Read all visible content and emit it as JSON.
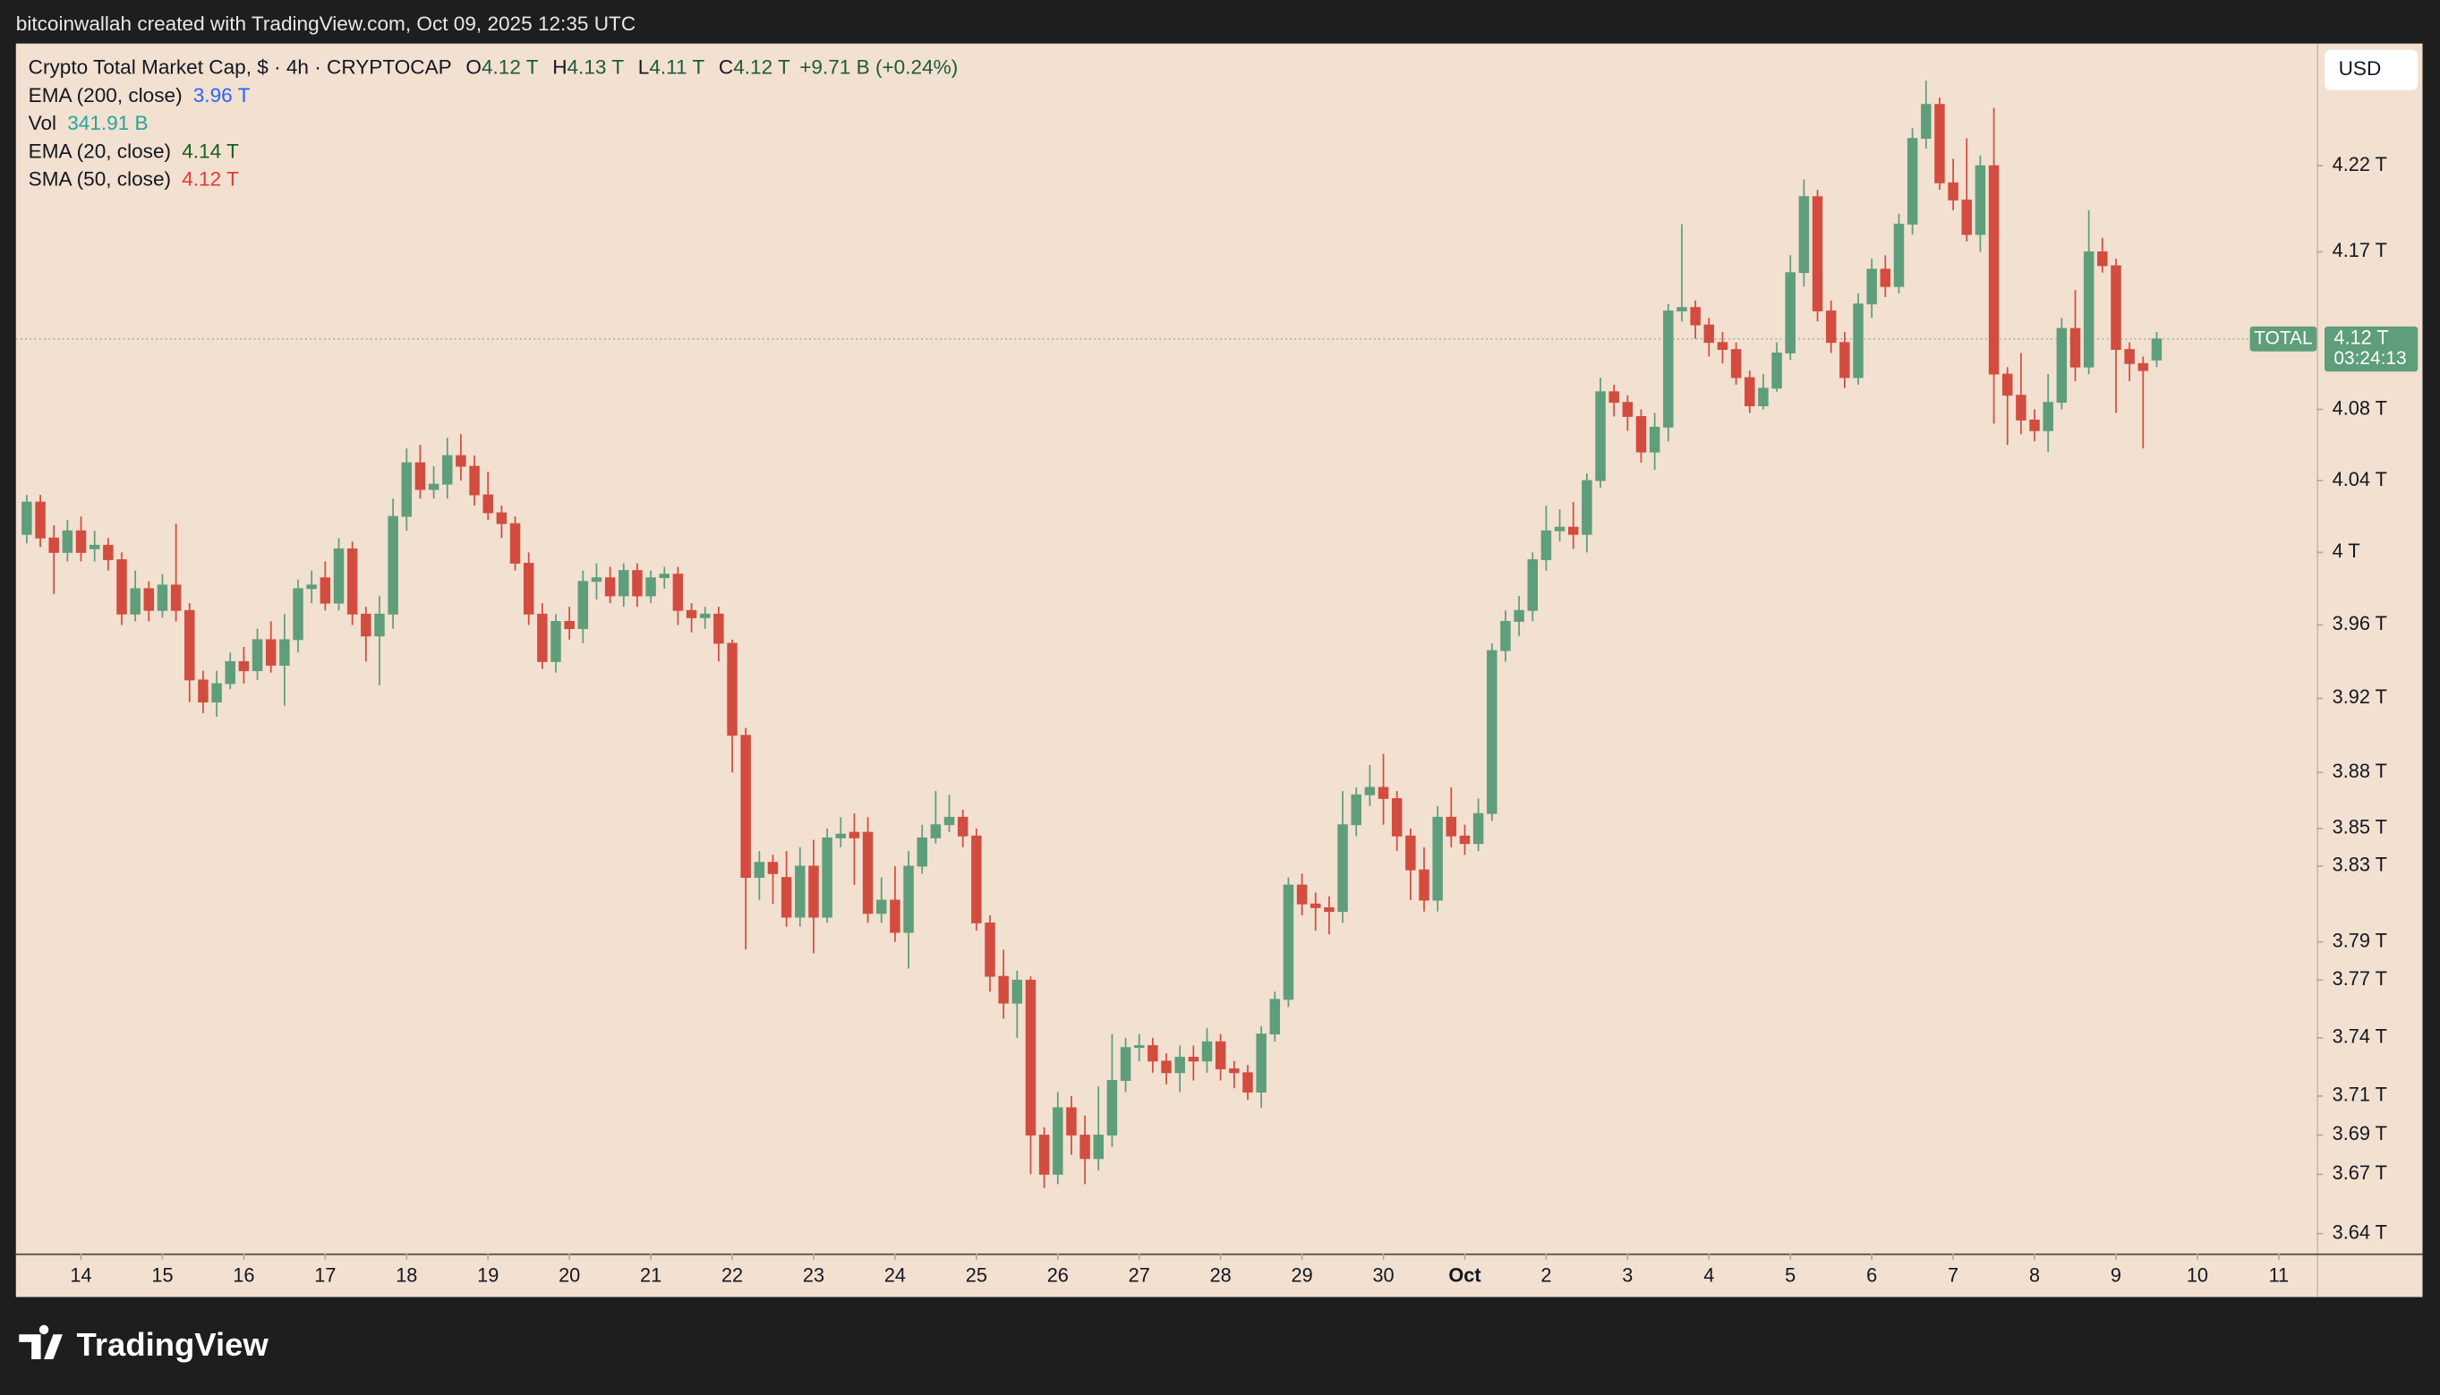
{
  "header": {
    "caption": "bitcoinwallah created with TradingView.com, Oct 09, 2025 12:35 UTC"
  },
  "footer": {
    "brand": "TradingView"
  },
  "chart_data": {
    "type": "candlestick",
    "title": "Crypto Total Market Cap, $ · 4h · CRYPTOCAP",
    "ohlc_legend": [
      {
        "key": "O",
        "value": "4.12 T"
      },
      {
        "key": "H",
        "value": "4.13 T"
      },
      {
        "key": "L",
        "value": "4.11 T"
      },
      {
        "key": "C",
        "value": "4.12 T"
      }
    ],
    "change": "+9.71 B (+0.24%)",
    "indicators": [
      {
        "name": "EMA (200, close)",
        "value": "3.96 T",
        "color": "#2962ff"
      },
      {
        "name": "Vol",
        "value": "341.91 B",
        "color": "#26a69a"
      },
      {
        "name": "EMA (20, close)",
        "value": "4.14 T",
        "color": "#1b5e20"
      },
      {
        "name": "SMA (50, close)",
        "value": "4.12 T",
        "color": "#e53935"
      }
    ],
    "currency": "USD",
    "last_price": {
      "symbol": "TOTAL",
      "value": 4.12,
      "label": "4.12 T",
      "countdown": "03:24:13"
    },
    "up_color": "#5e9e7b",
    "down_color": "#d34c40",
    "log_scale": true,
    "ylim": [
      3.63,
      4.292
    ],
    "yticks": [
      {
        "value": 4.22,
        "label": "4.22 T"
      },
      {
        "value": 4.17,
        "label": "4.17 T"
      },
      {
        "value": 4.08,
        "label": "4.08 T"
      },
      {
        "value": 4.04,
        "label": "4.04 T"
      },
      {
        "value": 4,
        "label": "4 T"
      },
      {
        "value": 3.96,
        "label": "3.96 T"
      },
      {
        "value": 3.92,
        "label": "3.92 T"
      },
      {
        "value": 3.88,
        "label": "3.88 T"
      },
      {
        "value": 3.85,
        "label": "3.85 T"
      },
      {
        "value": 3.83,
        "label": "3.83 T"
      },
      {
        "value": 3.79,
        "label": "3.79 T"
      },
      {
        "value": 3.77,
        "label": "3.77 T"
      },
      {
        "value": 3.74,
        "label": "3.74 T"
      },
      {
        "value": 3.71,
        "label": "3.71 T"
      },
      {
        "value": 3.69,
        "label": "3.69 T"
      },
      {
        "value": 3.67,
        "label": "3.67 T"
      },
      {
        "value": 3.64,
        "label": "3.64 T"
      }
    ],
    "xlim": [
      -0.8,
      168.8
    ],
    "xticks": [
      {
        "value": 4,
        "label": "14"
      },
      {
        "value": 10,
        "label": "15"
      },
      {
        "value": 16,
        "label": "16"
      },
      {
        "value": 22,
        "label": "17"
      },
      {
        "value": 28,
        "label": "18"
      },
      {
        "value": 34,
        "label": "19"
      },
      {
        "value": 40,
        "label": "20"
      },
      {
        "value": 46,
        "label": "21"
      },
      {
        "value": 52,
        "label": "22"
      },
      {
        "value": 58,
        "label": "23"
      },
      {
        "value": 64,
        "label": "24"
      },
      {
        "value": 70,
        "label": "25"
      },
      {
        "value": 76,
        "label": "26"
      },
      {
        "value": 82,
        "label": "27"
      },
      {
        "value": 88,
        "label": "28"
      },
      {
        "value": 94,
        "label": "29"
      },
      {
        "value": 100,
        "label": "30"
      },
      {
        "value": 106,
        "label": "Oct"
      },
      {
        "value": 112,
        "label": "2"
      },
      {
        "value": 118,
        "label": "3"
      },
      {
        "value": 124,
        "label": "4"
      },
      {
        "value": 130,
        "label": "5"
      },
      {
        "value": 136,
        "label": "6"
      },
      {
        "value": 142,
        "label": "7"
      },
      {
        "value": 148,
        "label": "8"
      },
      {
        "value": 154,
        "label": "9"
      },
      {
        "value": 160,
        "label": "10"
      },
      {
        "value": 166,
        "label": "11"
      }
    ],
    "open": [
      4.01,
      4.028,
      4.008,
      4.0,
      4.012,
      4.002,
      4.004,
      3.996,
      3.966,
      3.98,
      3.968,
      3.982,
      3.968,
      3.93,
      3.918,
      3.928,
      3.94,
      3.935,
      3.952,
      3.938,
      3.952,
      3.98,
      3.986,
      3.972,
      4.002,
      3.966,
      3.954,
      3.966,
      4.02,
      4.05,
      4.035,
      4.038,
      4.054,
      4.048,
      4.032,
      4.022,
      4.016,
      3.994,
      3.966,
      3.94,
      3.962,
      3.958,
      3.984,
      3.986,
      3.976,
      3.99,
      3.976,
      3.986,
      3.988,
      3.968,
      3.964,
      3.966,
      3.95,
      3.9,
      3.824,
      3.832,
      3.824,
      3.803,
      3.83,
      3.803,
      3.845,
      3.848,
      3.848,
      3.805,
      3.812,
      3.795,
      3.83,
      3.845,
      3.852,
      3.856,
      3.846,
      3.8,
      3.772,
      3.758,
      3.77,
      3.69,
      3.67,
      3.704,
      3.69,
      3.678,
      3.69,
      3.718,
      3.735,
      3.736,
      3.728,
      3.722,
      3.73,
      3.728,
      3.738,
      3.724,
      3.722,
      3.712,
      3.742,
      3.76,
      3.82,
      3.81,
      3.808,
      3.806,
      3.852,
      3.868,
      3.872,
      3.866,
      3.846,
      3.828,
      3.812,
      3.856,
      3.846,
      3.842,
      3.858,
      3.946,
      3.962,
      3.968,
      3.996,
      4.012,
      4.014,
      4.01,
      4.04,
      4.09,
      4.084,
      4.076,
      4.056,
      4.07,
      4.136,
      4.138,
      4.128,
      4.118,
      4.114,
      4.098,
      4.082,
      4.092,
      4.112,
      4.158,
      4.202,
      4.136,
      4.118,
      4.098,
      4.14,
      4.16,
      4.15,
      4.186,
      4.236,
      4.256,
      4.21,
      4.2,
      4.18,
      4.22,
      4.1,
      4.088,
      4.074,
      4.068,
      4.084,
      4.126,
      4.104,
      4.17,
      4.162,
      4.114,
      4.106,
      4.108
    ],
    "high": [
      4.032,
      4.032,
      4.015,
      4.018,
      4.02,
      4.012,
      4.008,
      4.0,
      3.99,
      3.984,
      3.988,
      4.016,
      3.972,
      3.935,
      3.935,
      3.945,
      3.948,
      3.958,
      3.962,
      3.966,
      3.985,
      3.99,
      3.995,
      4.008,
      4.006,
      3.97,
      3.976,
      4.03,
      4.058,
      4.06,
      4.048,
      4.064,
      4.066,
      4.054,
      4.045,
      4.026,
      4.02,
      4.0,
      3.972,
      3.966,
      3.97,
      3.99,
      3.994,
      3.992,
      3.994,
      3.994,
      3.99,
      3.992,
      3.992,
      3.972,
      3.97,
      3.97,
      3.952,
      3.904,
      3.838,
      3.836,
      3.838,
      3.84,
      3.844,
      3.85,
      3.856,
      3.858,
      3.856,
      3.824,
      3.83,
      3.838,
      3.852,
      3.87,
      3.868,
      3.86,
      3.85,
      3.804,
      3.786,
      3.775,
      3.772,
      3.694,
      3.712,
      3.71,
      3.7,
      3.715,
      3.742,
      3.74,
      3.742,
      3.74,
      3.732,
      3.736,
      3.736,
      3.745,
      3.742,
      3.728,
      3.726,
      3.746,
      3.764,
      3.824,
      3.826,
      3.816,
      3.814,
      3.87,
      3.872,
      3.884,
      3.89,
      3.87,
      3.85,
      3.84,
      3.862,
      3.872,
      3.852,
      3.866,
      3.95,
      3.968,
      3.976,
      4.0,
      4.026,
      4.024,
      4.028,
      4.044,
      4.098,
      4.094,
      4.088,
      4.08,
      4.078,
      4.14,
      4.186,
      4.142,
      4.132,
      4.124,
      4.118,
      4.102,
      4.1,
      4.118,
      4.168,
      4.212,
      4.206,
      4.142,
      4.124,
      4.146,
      4.166,
      4.168,
      4.192,
      4.242,
      4.27,
      4.26,
      4.224,
      4.236,
      4.226,
      4.254,
      4.104,
      4.112,
      4.08,
      4.1,
      4.132,
      4.148,
      4.194,
      4.178,
      4.166,
      4.118,
      4.11,
      4.124
    ],
    "low": [
      4.005,
      4.003,
      3.977,
      3.995,
      3.995,
      3.995,
      3.99,
      3.96,
      3.962,
      3.962,
      3.964,
      3.962,
      3.918,
      3.912,
      3.91,
      3.925,
      3.928,
      3.93,
      3.934,
      3.916,
      3.945,
      3.972,
      3.968,
      3.968,
      3.96,
      3.94,
      3.927,
      3.958,
      4.012,
      4.03,
      4.03,
      4.03,
      4.04,
      4.026,
      4.018,
      4.008,
      3.99,
      3.96,
      3.936,
      3.934,
      3.952,
      3.95,
      3.974,
      3.972,
      3.97,
      3.97,
      3.972,
      3.98,
      3.96,
      3.956,
      3.958,
      3.94,
      3.88,
      3.786,
      3.812,
      3.81,
      3.798,
      3.798,
      3.784,
      3.8,
      3.84,
      3.82,
      3.8,
      3.8,
      3.79,
      3.776,
      3.826,
      3.842,
      3.848,
      3.84,
      3.796,
      3.764,
      3.75,
      3.74,
      3.67,
      3.663,
      3.665,
      3.68,
      3.665,
      3.672,
      3.684,
      3.712,
      3.728,
      3.722,
      3.716,
      3.712,
      3.718,
      3.722,
      3.718,
      3.714,
      3.708,
      3.704,
      3.738,
      3.756,
      3.804,
      3.796,
      3.794,
      3.8,
      3.846,
      3.862,
      3.852,
      3.838,
      3.812,
      3.806,
      3.806,
      3.84,
      3.836,
      3.838,
      3.854,
      3.94,
      3.954,
      3.962,
      3.99,
      4.006,
      4.002,
      4.0,
      4.036,
      4.076,
      4.068,
      4.05,
      4.046,
      4.062,
      4.13,
      4.12,
      4.11,
      4.106,
      4.094,
      4.078,
      4.08,
      4.09,
      4.108,
      4.15,
      4.13,
      4.112,
      4.092,
      4.094,
      4.132,
      4.144,
      4.146,
      4.18,
      4.23,
      4.206,
      4.194,
      4.176,
      4.17,
      4.072,
      4.06,
      4.066,
      4.062,
      4.056,
      4.08,
      4.096,
      4.1,
      4.158,
      4.078,
      4.096,
      4.058,
      4.104
    ],
    "close": [
      4.028,
      4.008,
      4.0,
      4.012,
      4.0,
      4.004,
      3.996,
      3.966,
      3.98,
      3.968,
      3.982,
      3.968,
      3.93,
      3.918,
      3.928,
      3.94,
      3.935,
      3.952,
      3.938,
      3.952,
      3.98,
      3.982,
      3.972,
      4.002,
      3.966,
      3.954,
      3.966,
      4.02,
      4.05,
      4.035,
      4.038,
      4.054,
      4.048,
      4.032,
      4.022,
      4.016,
      3.994,
      3.966,
      3.94,
      3.962,
      3.958,
      3.984,
      3.986,
      3.976,
      3.99,
      3.976,
      3.986,
      3.988,
      3.968,
      3.964,
      3.966,
      3.95,
      3.9,
      3.824,
      3.832,
      3.826,
      3.803,
      3.83,
      3.803,
      3.845,
      3.847,
      3.845,
      3.805,
      3.812,
      3.795,
      3.83,
      3.845,
      3.852,
      3.856,
      3.846,
      3.8,
      3.772,
      3.758,
      3.77,
      3.69,
      3.67,
      3.704,
      3.69,
      3.678,
      3.69,
      3.718,
      3.735,
      3.736,
      3.728,
      3.722,
      3.73,
      3.728,
      3.738,
      3.724,
      3.722,
      3.712,
      3.742,
      3.76,
      3.82,
      3.81,
      3.808,
      3.806,
      3.852,
      3.868,
      3.872,
      3.866,
      3.846,
      3.828,
      3.812,
      3.856,
      3.846,
      3.842,
      3.858,
      3.946,
      3.962,
      3.968,
      3.996,
      4.012,
      4.014,
      4.01,
      4.04,
      4.09,
      4.084,
      4.076,
      4.056,
      4.07,
      4.136,
      4.138,
      4.128,
      4.118,
      4.114,
      4.098,
      4.082,
      4.092,
      4.112,
      4.158,
      4.202,
      4.136,
      4.118,
      4.098,
      4.14,
      4.16,
      4.15,
      4.186,
      4.236,
      4.256,
      4.21,
      4.2,
      4.18,
      4.22,
      4.1,
      4.088,
      4.074,
      4.068,
      4.084,
      4.126,
      4.104,
      4.17,
      4.162,
      4.114,
      4.106,
      4.102,
      4.12
    ]
  }
}
